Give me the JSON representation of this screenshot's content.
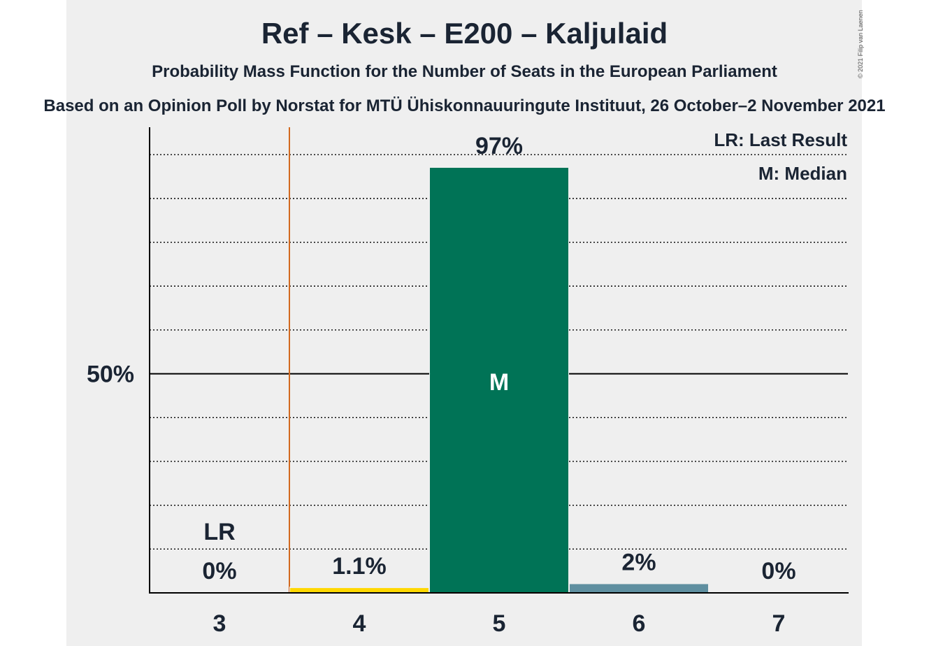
{
  "title": "Ref – Kesk – E200 – Kaljulaid",
  "subtitle": "Probability Mass Function for the Number of Seats in the European Parliament",
  "source": "Based on an Opinion Poll by Norstat for MTÜ Ühiskonnauuringute Instituut, 26 October–2 November 2021",
  "copyright": "© 2021 Filip van Laenen",
  "legend": {
    "last_result": "LR: Last Result",
    "median": "M: Median"
  },
  "colors": {
    "background": "#efefef",
    "last_result_line": "#d2691e",
    "text": "#1a2433"
  },
  "chart_data": {
    "type": "bar",
    "categories": [
      "3",
      "4",
      "5",
      "6",
      "7"
    ],
    "values": [
      0,
      1.1,
      97,
      2,
      0
    ],
    "value_labels": [
      "0%",
      "1.1%",
      "97%",
      "2%",
      "0%"
    ],
    "bar_colors": [
      "#7f7f7f",
      "#ffd700",
      "#007356",
      "#5f8fa0",
      "#7f7f7f"
    ],
    "ylim": [
      0,
      105
    ],
    "yticks": [
      10,
      20,
      30,
      40,
      50,
      60,
      70,
      80,
      90,
      100
    ],
    "ytick_labels": [
      {
        "value": 50,
        "label": "50%"
      }
    ],
    "grid": true,
    "last_result_seats": "3",
    "last_result_label": "LR",
    "median_seats": "5",
    "median_label": "M",
    "legend_position": "top-right"
  }
}
